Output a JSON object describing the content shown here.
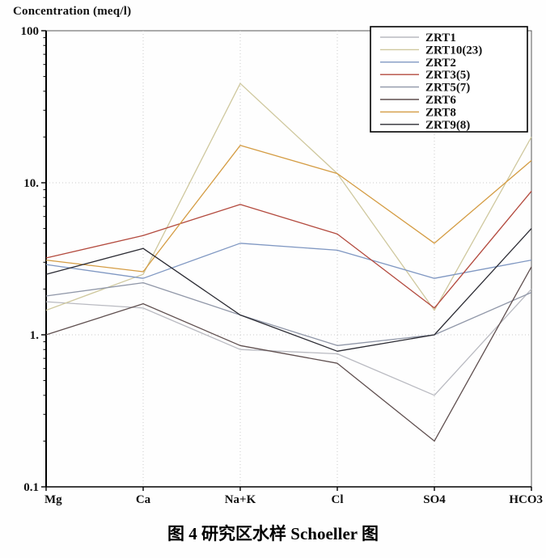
{
  "title": "Concentration (meq/l)",
  "caption": "图 4  研究区水样 Schoeller 图",
  "chart_data": {
    "type": "line",
    "title": "Concentration (meq/l)",
    "xlabel": "",
    "ylabel": "Concentration (meq/l)",
    "x_categories": [
      "Mg",
      "Ca",
      "Na+K",
      "Cl",
      "SO4",
      "HCO3"
    ],
    "y_axis": {
      "scale": "log",
      "min": 0.1,
      "max": 100,
      "tick_labels": [
        "100",
        "10.",
        "1.",
        "0.1"
      ],
      "tick_values": [
        100,
        10,
        1,
        0.1
      ]
    },
    "grid": {
      "horizontal_dotted_at": [
        10,
        1
      ],
      "vertical_dotted_at_categories": [
        "Ca",
        "Na+K",
        "Cl",
        "SO4"
      ]
    },
    "legend_position": "top-right",
    "series": [
      {
        "name": "ZRT1",
        "color": "#b9bac1",
        "values": [
          1.65,
          1.5,
          0.8,
          0.75,
          0.4,
          2.0
        ]
      },
      {
        "name": "ZRT10(23)",
        "color": "#cfc89e",
        "values": [
          1.45,
          2.5,
          45,
          11.5,
          1.45,
          20
        ]
      },
      {
        "name": "ZRT2",
        "color": "#7f97c2",
        "values": [
          2.9,
          2.35,
          4.0,
          3.6,
          2.35,
          3.1
        ]
      },
      {
        "name": "ZRT3(5)",
        "color": "#b34a3e",
        "values": [
          3.2,
          4.5,
          7.2,
          4.6,
          1.5,
          8.8
        ]
      },
      {
        "name": "ZRT5(7)",
        "color": "#9097a8",
        "values": [
          1.8,
          2.2,
          1.35,
          0.85,
          1.0,
          1.9
        ]
      },
      {
        "name": "ZRT6",
        "color": "#5f4f4f",
        "values": [
          1.0,
          1.6,
          0.85,
          0.65,
          0.2,
          2.8
        ]
      },
      {
        "name": "ZRT8",
        "color": "#d49c43",
        "values": [
          3.1,
          2.6,
          17.6,
          11.5,
          4.0,
          14
        ]
      },
      {
        "name": "ZRT9(8)",
        "color": "#2b2b33",
        "values": [
          2.5,
          3.7,
          1.35,
          0.78,
          1.0,
          5.0
        ]
      }
    ]
  }
}
